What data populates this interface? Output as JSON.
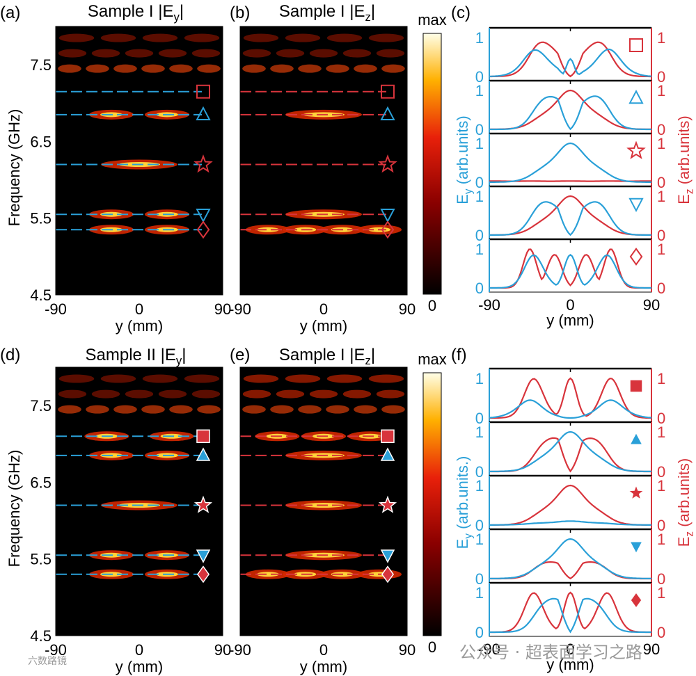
{
  "chart_data": [
    {
      "type": "heatmap",
      "panel": "(a)",
      "title_base": "Sample I |E",
      "title_sub": "y",
      "title_end": "|",
      "xlabel": "y (mm)",
      "ylabel": "Frequency (GHz)",
      "xlim": [
        -90,
        90
      ],
      "ylim": [
        4.5,
        8.0
      ],
      "xticks": [
        "-90",
        "0",
        "90"
      ],
      "yticks": [
        "4.5",
        "5.5",
        "6.5",
        "7.5"
      ],
      "line_color": "#2aa0d8",
      "modes": [
        {
          "f": 7.15,
          "marker": "square-open"
        },
        {
          "f": 6.85,
          "marker": "triangle-up-open"
        },
        {
          "f": 6.2,
          "marker": "star-open"
        },
        {
          "f": 5.55,
          "marker": "triangle-down-open"
        },
        {
          "f": 5.35,
          "marker": "diamond-open"
        }
      ]
    },
    {
      "type": "heatmap",
      "panel": "(b)",
      "title_base": "Sample I |E",
      "title_sub": "z",
      "title_end": "|",
      "xlabel": "y (mm)",
      "xlim": [
        -90,
        90
      ],
      "ylim": [
        4.5,
        8.0
      ],
      "xticks": [
        "-90",
        "0",
        "90"
      ],
      "line_color": "#d8343c",
      "modes": [
        {
          "f": 7.15,
          "marker": "square-open"
        },
        {
          "f": 6.85,
          "marker": "triangle-up-open"
        },
        {
          "f": 6.2,
          "marker": "star-open"
        },
        {
          "f": 5.55,
          "marker": "triangle-down-open"
        },
        {
          "f": 5.35,
          "marker": "diamond-open"
        }
      ]
    },
    {
      "type": "heatmap",
      "panel": "(d)",
      "title_base": "Sample II |E",
      "title_sub": "y",
      "title_end": "|",
      "xlabel": "y (mm)",
      "ylabel": "Frequency (GHz)",
      "xlim": [
        -90,
        90
      ],
      "ylim": [
        4.5,
        8.0
      ],
      "xticks": [
        "-90",
        "0",
        "90"
      ],
      "yticks": [
        "4.5",
        "5.5",
        "6.5",
        "7.5"
      ],
      "line_color": "#2aa0d8",
      "modes": [
        {
          "f": 7.1,
          "marker": "square-filled"
        },
        {
          "f": 6.85,
          "marker": "triangle-up-filled"
        },
        {
          "f": 6.2,
          "marker": "star-filled"
        },
        {
          "f": 5.55,
          "marker": "triangle-down-filled"
        },
        {
          "f": 5.3,
          "marker": "diamond-filled"
        }
      ]
    },
    {
      "type": "heatmap",
      "panel": "(e)",
      "title_base": "Sample I |E",
      "title_sub": "z",
      "title_end": "|",
      "xlabel": "y (mm)",
      "xlim": [
        -90,
        90
      ],
      "ylim": [
        4.5,
        8.0
      ],
      "xticks": [
        "-90",
        "0",
        "90"
      ],
      "line_color": "#d8343c",
      "modes": [
        {
          "f": 7.1,
          "marker": "square-filled"
        },
        {
          "f": 6.85,
          "marker": "triangle-up-filled"
        },
        {
          "f": 6.2,
          "marker": "star-filled"
        },
        {
          "f": 5.55,
          "marker": "triangle-down-filled"
        },
        {
          "f": 5.3,
          "marker": "diamond-filled"
        }
      ]
    },
    {
      "type": "line",
      "panel": "(c)",
      "xlabel": "y (mm)",
      "ylabel_left_base": "E",
      "ylabel_left_sub": "y",
      "ylabel_left_end": " (arb.units)",
      "ylabel_right_base": "E",
      "ylabel_right_sub": "z",
      "ylabel_right_end": " (arb.units)",
      "xlim": [
        -90,
        90
      ],
      "xticks": [
        "-90",
        "0",
        "90"
      ],
      "subplots": [
        {
          "marker": "square-open",
          "marker_color": "#d8343c",
          "Ey": {
            "profile": "two-lobe",
            "peaks": [
              -37,
              42
            ],
            "amp": 0.7,
            "center_bump": 0.45
          },
          "Ez": {
            "profile": "two-lobe",
            "peaks": [
              -28,
              28
            ],
            "amp": 1.0
          }
        },
        {
          "marker": "triangle-up-open",
          "marker_color": "#2aa0d8",
          "Ey": {
            "profile": "two-lobe",
            "peaks": [
              -22,
              25
            ],
            "amp": 1.0
          },
          "Ez": {
            "profile": "single",
            "peaks": [
              0
            ],
            "amp": 1.0
          }
        },
        {
          "marker": "star-open",
          "marker_color": "#d8343c",
          "Ey": {
            "profile": "single",
            "peaks": [
              0
            ],
            "amp": 1.0
          },
          "Ez": {
            "profile": "flat",
            "amp": 0.03
          }
        },
        {
          "marker": "triangle-down-open",
          "marker_color": "#2aa0d8",
          "Ey": {
            "profile": "two-lobe",
            "peaks": [
              -25,
              25
            ],
            "amp": 1.0
          },
          "Ez": {
            "profile": "single",
            "peaks": [
              0
            ],
            "amp": 1.0
          }
        },
        {
          "marker": "diamond-open",
          "marker_color": "#d8343c",
          "Ey": {
            "profile": "three-lobe",
            "peaks": [
              -40,
              0,
              40
            ],
            "amp": 0.85
          },
          "Ez": {
            "profile": "four-lobe",
            "peaks": [
              -45,
              -18,
              18,
              45
            ],
            "amp": 1.0
          }
        }
      ]
    },
    {
      "type": "line",
      "panel": "(f)",
      "xlabel": "y (mm)",
      "ylabel_left_base": "E",
      "ylabel_left_sub": "y",
      "ylabel_left_end": " (arb.units.)",
      "ylabel_right_base": "E",
      "ylabel_right_sub": "z",
      "ylabel_right_end": " (arb.units)",
      "xlim": [
        -90,
        90
      ],
      "xticks": [
        "-90",
        "0",
        "90"
      ],
      "subplots": [
        {
          "marker": "square-filled",
          "marker_color": "#d8343c",
          "Ey": {
            "profile": "two-lobe",
            "peaks": [
              -45,
              45
            ],
            "amp": 0.45
          },
          "Ez": {
            "profile": "three-lobe",
            "peaks": [
              -40,
              0,
              45
            ],
            "amp": 1.0
          }
        },
        {
          "marker": "triangle-up-filled",
          "marker_color": "#2aa0d8",
          "Ey": {
            "profile": "single",
            "peaks": [
              0
            ],
            "amp": 1.0
          },
          "Ez": {
            "profile": "two-lobe",
            "peaks": [
              -20,
              22
            ],
            "amp": 1.0
          }
        },
        {
          "marker": "star-filled",
          "marker_color": "#d8343c",
          "Ey": {
            "profile": "single-low",
            "peaks": [
              0
            ],
            "amp": 0.1
          },
          "Ez": {
            "profile": "single",
            "peaks": [
              0
            ],
            "amp": 1.0
          }
        },
        {
          "marker": "triangle-down-filled",
          "marker_color": "#2aa0d8",
          "Ey": {
            "profile": "single",
            "peaks": [
              0
            ],
            "amp": 1.0
          },
          "Ez": {
            "profile": "two-lobe",
            "peaks": [
              -22,
              22
            ],
            "amp": 0.5
          }
        },
        {
          "marker": "diamond-filled",
          "marker_color": "#d8343c",
          "Ey": {
            "profile": "two-lobe",
            "peaks": [
              -20,
              20
            ],
            "amp": 1.0
          },
          "Ez": {
            "profile": "three-lobe",
            "peaks": [
              -40,
              0,
              40
            ],
            "amp": 1.0
          }
        }
      ]
    }
  ],
  "colorbars": [
    {
      "max_label": "max",
      "min_label": "0"
    },
    {
      "max_label": "max",
      "min_label": "0"
    }
  ],
  "watermarks": [
    {
      "text": "公众号 · 超表面学习之路"
    },
    {
      "text": "六数路镜"
    }
  ],
  "colors": {
    "ey": "#2aa0d8",
    "ez": "#d8343c"
  }
}
